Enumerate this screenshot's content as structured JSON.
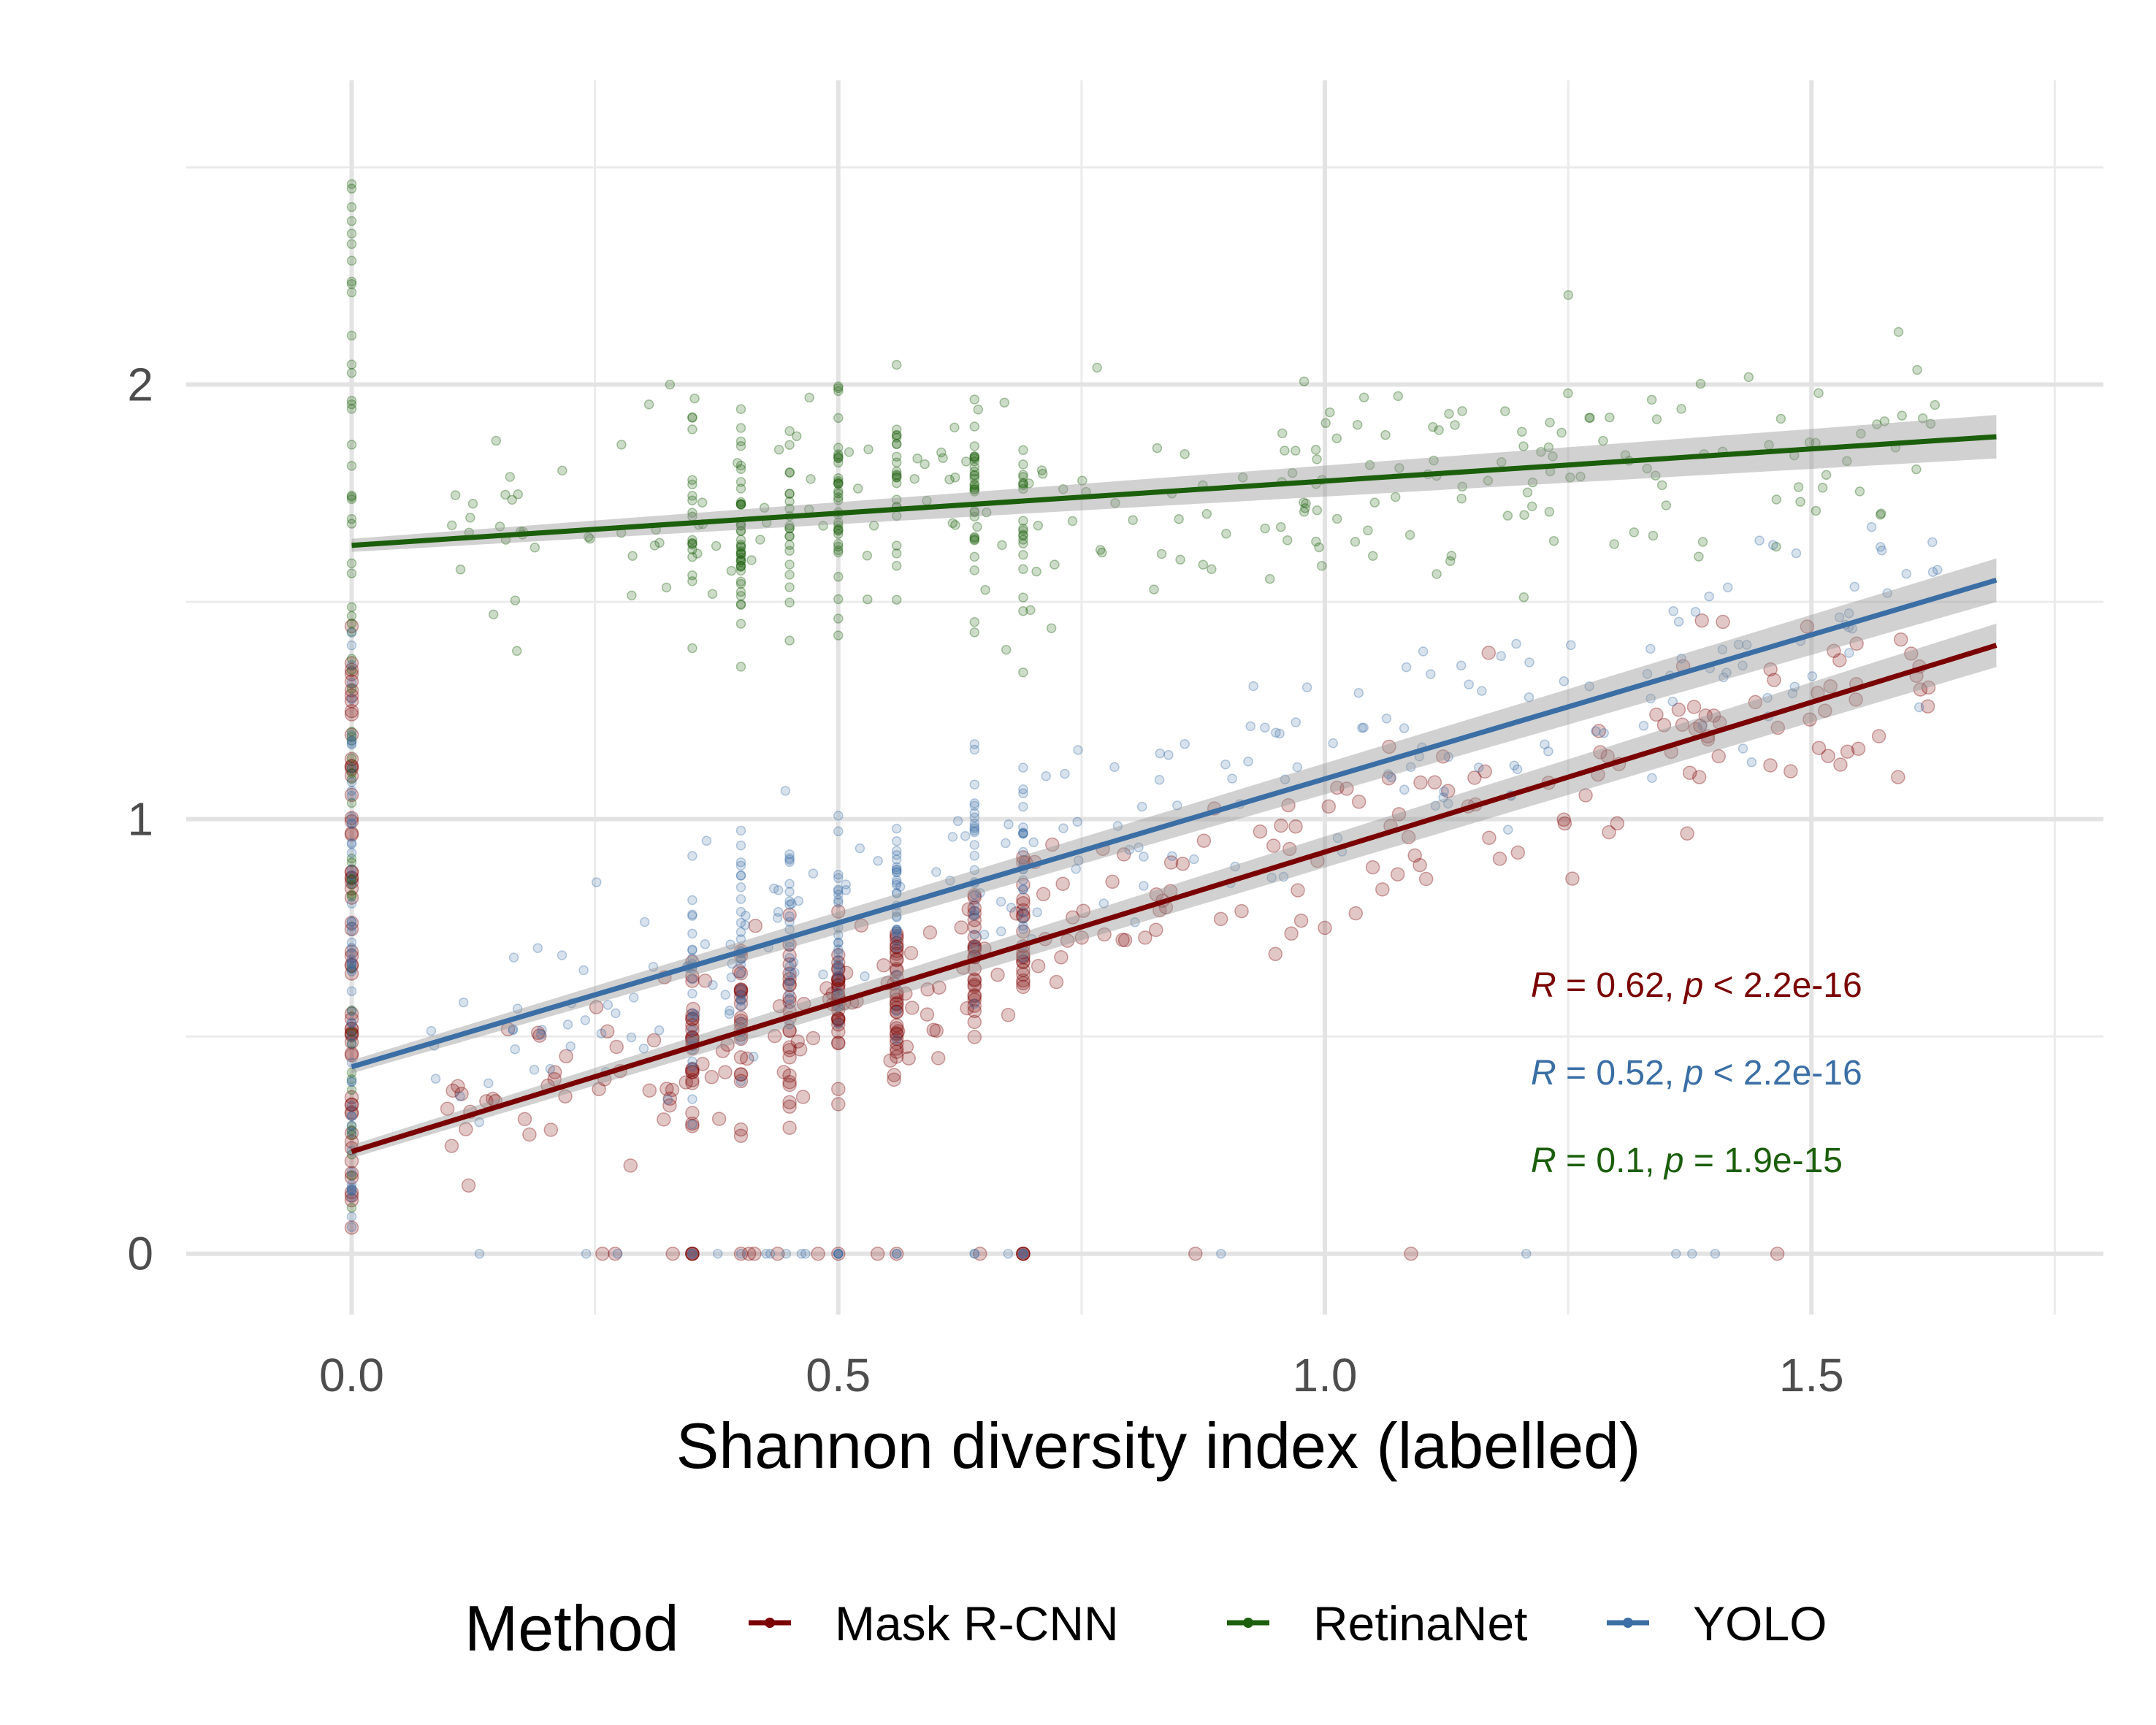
{
  "chart_data": {
    "type": "scatter",
    "xlabel": "Shannon diversity index (labelled)",
    "ylabel": "",
    "xlim": [
      -0.17,
      1.8
    ],
    "ylim": [
      -0.14,
      2.7
    ],
    "x_ticks": [
      0.0,
      0.5,
      1.0,
      1.5
    ],
    "x_tick_labels": [
      "0.0",
      "0.5",
      "1.0",
      "1.5"
    ],
    "y_ticks": [
      0,
      1,
      2
    ],
    "y_tick_labels": [
      "0",
      "1",
      "2"
    ],
    "grid": true,
    "legend": {
      "title": "Method",
      "position": "bottom",
      "entries": [
        "Mask R-CNN",
        "RetinaNet",
        "YOLO"
      ]
    },
    "series": [
      {
        "name": "Mask R-CNN",
        "color": "#7a0000",
        "fit": {
          "x0": 0.0,
          "y0": 0.235,
          "x1": 1.69,
          "y1": 1.4
        },
        "stat": {
          "r": "0.62",
          "p_op": "<",
          "p": "2.2e-16"
        }
      },
      {
        "name": "RetinaNet",
        "color": "#1b5e0b",
        "fit": {
          "x0": 0.0,
          "y0": 1.63,
          "x1": 1.69,
          "y1": 1.88
        },
        "stat": {
          "r": "0.1",
          "p_op": "=",
          "p": "1.9e-15"
        }
      },
      {
        "name": "YOLO",
        "color": "#3a6ea5",
        "fit": {
          "x0": 0.0,
          "y0": 0.43,
          "x1": 1.69,
          "y1": 1.55
        },
        "stat": {
          "r": "0.52",
          "p_op": "<",
          "p": "2.2e-16"
        }
      }
    ]
  }
}
